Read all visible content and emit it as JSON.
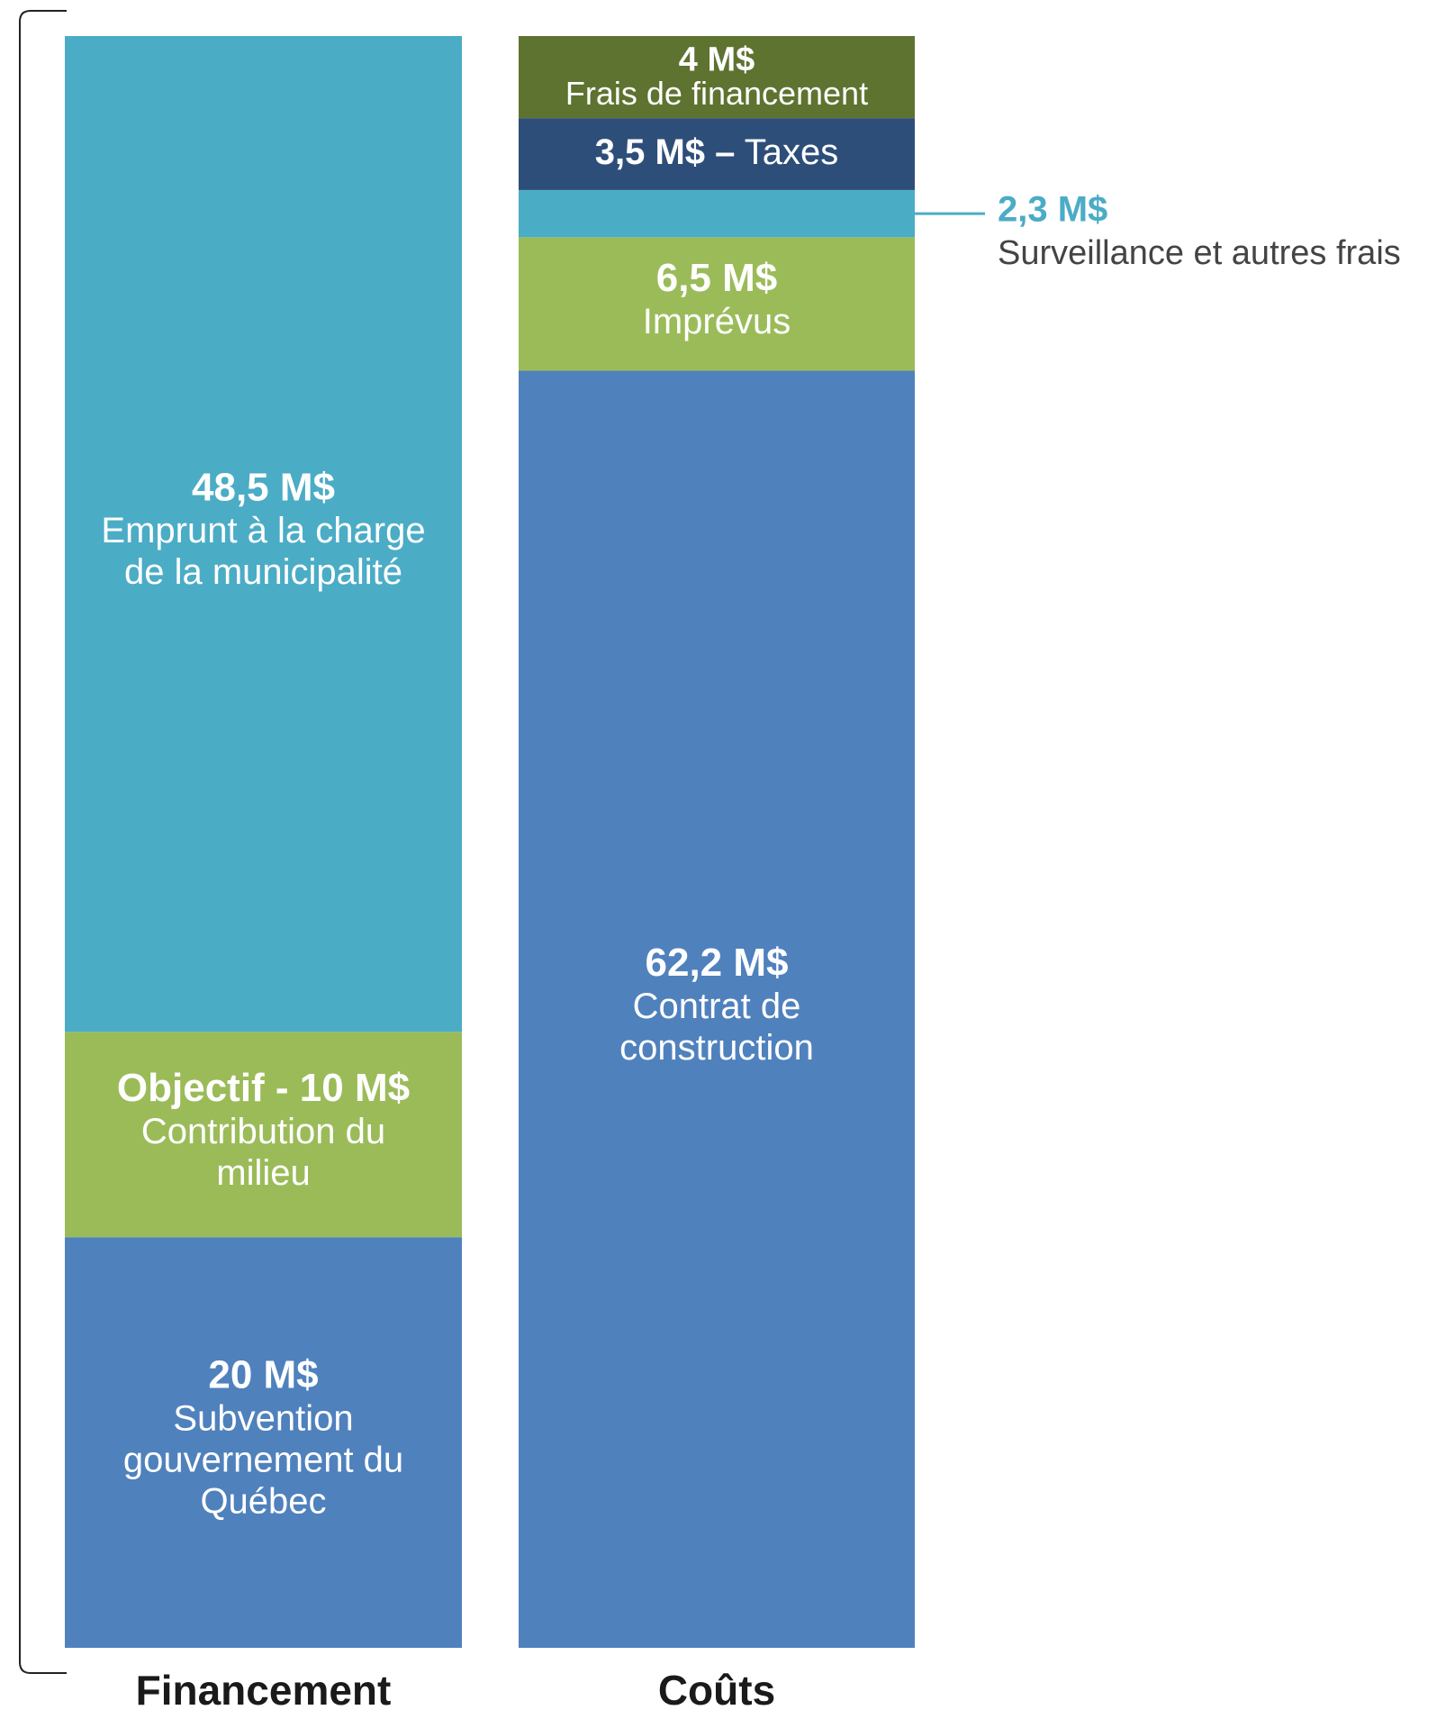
{
  "chart_data": {
    "type": "stacked-bar",
    "categories": [
      "Financement",
      "Coûts"
    ],
    "stacks": [
      {
        "segments": [
          {
            "value": 20,
            "value_label": "20 M$",
            "label": [
              "Subvention",
              "gouvernement du",
              "Québec"
            ],
            "color": "#4f81bd"
          },
          {
            "value": 10,
            "value_label": "Objectif - 10 M$",
            "label": [
              "Contribution du",
              "milieu"
            ],
            "color": "#9bbb59"
          },
          {
            "value": 48.5,
            "value_label": "48,5 M$",
            "label": [
              "Emprunt à la charge",
              "de la municipalité"
            ],
            "color": "#4bacc6"
          }
        ]
      },
      {
        "segments": [
          {
            "value": 62.2,
            "value_label": "62,2 M$",
            "label": [
              "Contrat de",
              "construction"
            ],
            "color": "#4f81bd"
          },
          {
            "value": 6.5,
            "value_label": "6,5 M$",
            "label": [
              "Imprévus"
            ],
            "color": "#9bbb59"
          },
          {
            "value": 2.3,
            "value_label": "2,3 M$",
            "label": [
              "Surveillance et autres frais"
            ],
            "color": "#4bacc6",
            "callout": true
          },
          {
            "value": 3.5,
            "value_label": "3,5 M$ –",
            "label": [
              "Taxes"
            ],
            "color": "#2e4e7a"
          },
          {
            "value": 4,
            "value_label": "4 M$",
            "label": [
              "Frais de financement"
            ],
            "color": "#5e7330"
          }
        ]
      }
    ]
  }
}
